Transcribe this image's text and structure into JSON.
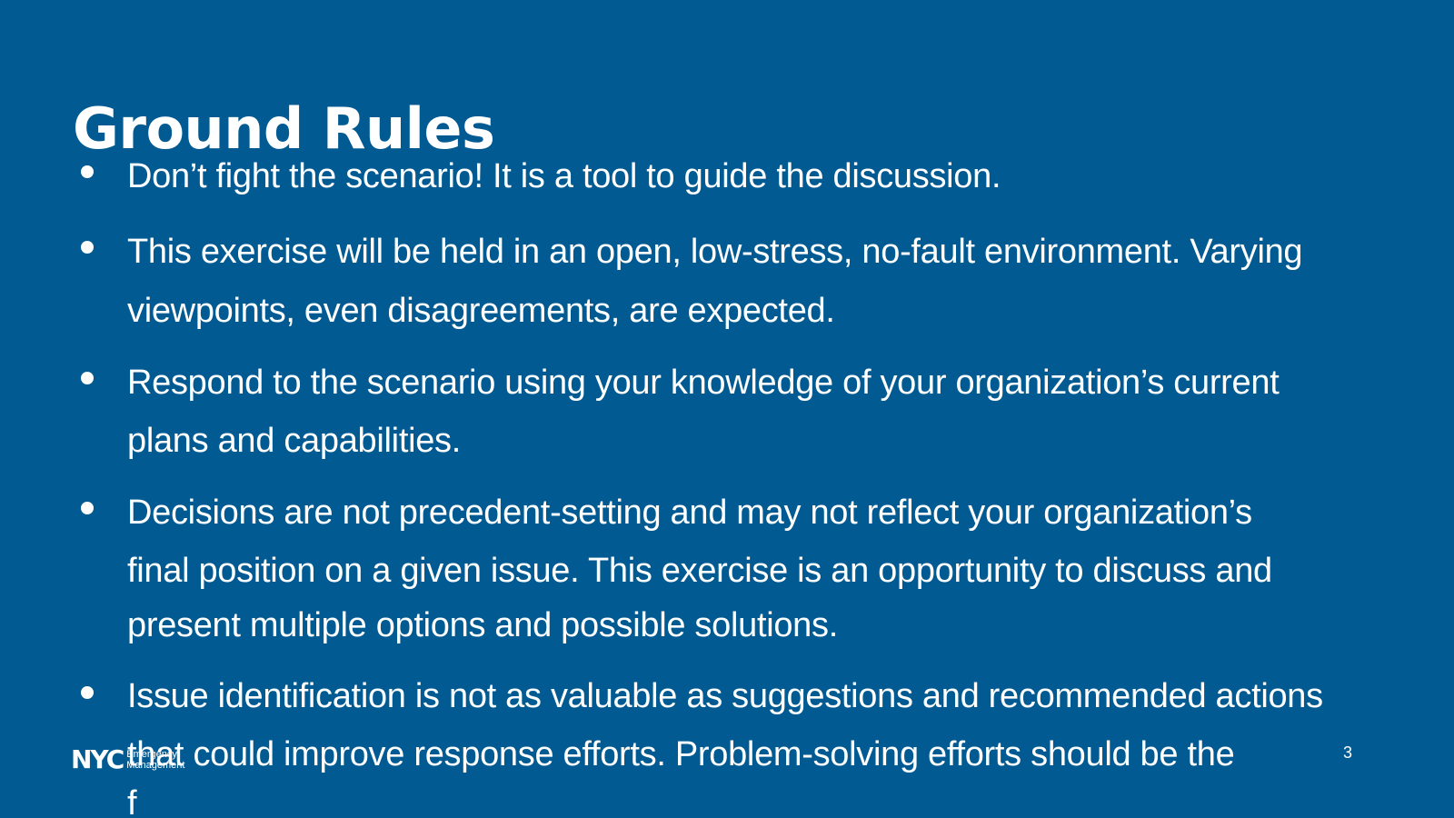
{
  "slide": {
    "title": "Ground Rules",
    "page_number": "3",
    "logo": {
      "mark": "NYC",
      "line1": "Emergency",
      "line2": "Management"
    },
    "bullets": [
      {
        "lines": [
          "Don’t fight the scenario! It is a tool to guide the discussion."
        ]
      },
      {
        "lines": [
          "This exercise will be held in an open, low-stress, no-fault environment. Varying",
          "viewpoints, even disagreements, are expected."
        ]
      },
      {
        "lines": [
          "Respond to the scenario using your knowledge of your organization’s current",
          "plans and capabilities."
        ]
      },
      {
        "lines": [
          "Decisions are not precedent-setting and may not reflect your organization’s",
          "final position on a given issue. This exercise is an opportunity to discuss and",
          "present multiple options and possible solutions."
        ]
      },
      {
        "lines": [
          "Issue identification is not as valuable as suggestions and recommended actions",
          "that could improve response efforts. Problem-solving efforts should be the",
          "f"
        ]
      }
    ],
    "colors": {
      "background": "#015a92",
      "text": "#ffffff"
    }
  }
}
